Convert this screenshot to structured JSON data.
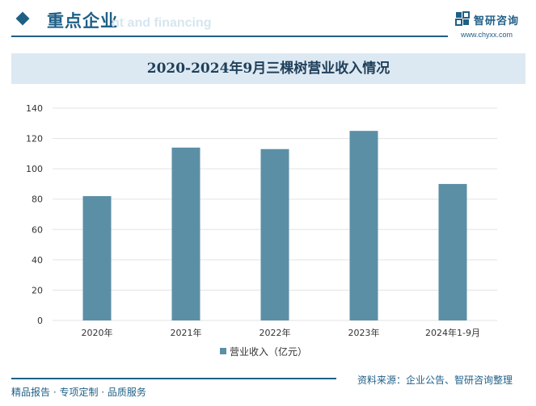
{
  "header": {
    "title": "重点企业",
    "ghost_text": "nt and financing"
  },
  "brand": {
    "name": "智研咨询",
    "url": "www.chyxx.com"
  },
  "chart_data": {
    "type": "bar",
    "title": "2020-2024年9月三棵树营业收入情况",
    "categories": [
      "2020年",
      "2021年",
      "2022年",
      "2023年",
      "2024年1-9月"
    ],
    "series": [
      {
        "name": "营业收入（亿元）",
        "values": [
          82,
          114,
          113,
          125,
          90
        ],
        "color": "#5b8fa6"
      }
    ],
    "ylim": [
      0,
      140
    ],
    "yticks": [
      0,
      20,
      40,
      60,
      80,
      100,
      120,
      140
    ],
    "grid": true,
    "legend": "bottom"
  },
  "footer": {
    "left": "精品报告 · 专项定制 · 品质服务",
    "source": "资料来源：企业公告、智研咨询整理"
  }
}
